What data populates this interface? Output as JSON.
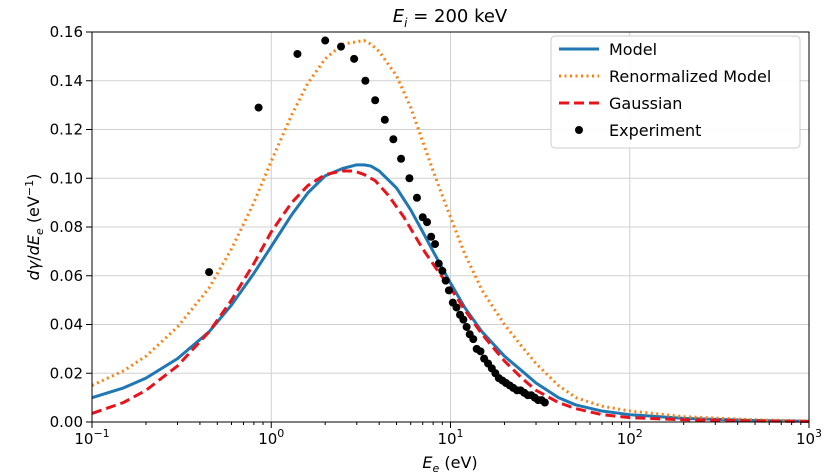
{
  "chart_data": {
    "type": "line",
    "title": "E_i = 200 keV",
    "title_parts": {
      "var": "E",
      "sub": "i",
      "rest": " = 200 keV"
    },
    "xlabel_parts": {
      "var": "E",
      "sub": "e",
      "rest": " (eV)"
    },
    "ylabel_parts": {
      "d1": "d",
      "gamma": "γ",
      "slash": "/",
      "d2": "d",
      "var": "E",
      "sub": "e",
      "unit": " (eV",
      "sup": "−1",
      "close": ")"
    },
    "x_scale": "log",
    "xlim": [
      0.1,
      1000
    ],
    "ylim": [
      0,
      0.16
    ],
    "grid": true,
    "legend_position": "top-right",
    "x_ticks": [
      {
        "base": "10",
        "exp": "−1",
        "value": 0.1
      },
      {
        "base": "10",
        "exp": "0",
        "value": 1
      },
      {
        "base": "10",
        "exp": "1",
        "value": 10
      },
      {
        "base": "10",
        "exp": "2",
        "value": 100
      },
      {
        "base": "10",
        "exp": "3",
        "value": 1000
      }
    ],
    "y_ticks": [
      "0.00",
      "0.02",
      "0.04",
      "0.06",
      "0.08",
      "0.10",
      "0.12",
      "0.14",
      "0.16"
    ],
    "series": [
      {
        "name": "Model",
        "color": "#1f77b4",
        "style": "solid",
        "x": [
          0.1,
          0.15,
          0.2,
          0.3,
          0.45,
          0.6,
          0.8,
          1.0,
          1.3,
          1.6,
          2.0,
          2.5,
          3.0,
          3.3,
          3.6,
          4.0,
          5.0,
          6.0,
          7.0,
          8.0,
          10,
          12,
          15,
          20,
          25,
          30,
          40,
          50,
          70,
          100,
          200,
          500,
          1000
        ],
        "y": [
          0.01,
          0.014,
          0.018,
          0.026,
          0.037,
          0.048,
          0.061,
          0.072,
          0.085,
          0.094,
          0.101,
          0.104,
          0.1055,
          0.1055,
          0.105,
          0.103,
          0.096,
          0.087,
          0.078,
          0.07,
          0.057,
          0.047,
          0.037,
          0.027,
          0.021,
          0.016,
          0.01,
          0.007,
          0.0045,
          0.003,
          0.0015,
          0.0006,
          0.0003
        ]
      },
      {
        "name": "Renormalized Model",
        "color": "#ff7f0e",
        "style": "dotted",
        "x": [
          0.1,
          0.15,
          0.2,
          0.3,
          0.45,
          0.6,
          0.8,
          1.0,
          1.3,
          1.6,
          2.0,
          2.5,
          3.0,
          3.3,
          3.6,
          4.0,
          5.0,
          6.0,
          7.0,
          8.0,
          10,
          12,
          15,
          20,
          25,
          30,
          40,
          50,
          70,
          100,
          200,
          500,
          1000
        ],
        "y": [
          0.015,
          0.021,
          0.027,
          0.039,
          0.055,
          0.071,
          0.09,
          0.107,
          0.126,
          0.139,
          0.149,
          0.155,
          0.156,
          0.1565,
          0.155,
          0.152,
          0.142,
          0.129,
          0.115,
          0.103,
          0.084,
          0.069,
          0.054,
          0.04,
          0.031,
          0.024,
          0.015,
          0.01,
          0.0065,
          0.0045,
          0.0022,
          0.0009,
          0.0004
        ]
      },
      {
        "name": "Gaussian",
        "color": "#e8141b",
        "style": "dashed",
        "x": [
          0.1,
          0.15,
          0.2,
          0.3,
          0.45,
          0.6,
          0.8,
          1.0,
          1.3,
          1.6,
          2.0,
          2.5,
          2.9,
          3.3,
          3.8,
          4.5,
          5.5,
          7.0,
          8.5,
          10,
          12,
          15,
          20,
          25,
          30,
          40,
          50,
          70,
          100,
          200,
          500,
          1000
        ],
        "y": [
          0.0035,
          0.008,
          0.013,
          0.023,
          0.037,
          0.05,
          0.065,
          0.078,
          0.09,
          0.097,
          0.1015,
          0.103,
          0.103,
          0.1015,
          0.099,
          0.093,
          0.084,
          0.071,
          0.062,
          0.055,
          0.046,
          0.036,
          0.025,
          0.018,
          0.013,
          0.008,
          0.0055,
          0.003,
          0.0018,
          0.0009,
          0.0004,
          0.0002
        ]
      },
      {
        "name": "Experiment",
        "color": "#000000",
        "style": "points",
        "x": [
          0.45,
          0.85,
          1.4,
          2.0,
          2.45,
          2.9,
          3.35,
          3.8,
          4.3,
          4.8,
          5.3,
          5.9,
          6.5,
          7.0,
          7.4,
          7.8,
          8.2,
          8.6,
          9.0,
          9.4,
          9.8,
          10.3,
          10.8,
          11.3,
          11.8,
          12.3,
          12.8,
          13.4,
          14.0,
          14.7,
          15.4,
          16.2,
          17.0,
          17.8,
          18.6,
          19.5,
          20.4,
          21.4,
          22.4,
          23.5,
          24.6,
          25.8,
          27.0,
          28.2,
          29.5,
          30.8,
          32.2,
          33.6
        ],
        "y": [
          0.0615,
          0.129,
          0.151,
          0.1565,
          0.154,
          0.149,
          0.14,
          0.132,
          0.124,
          0.116,
          0.108,
          0.1,
          0.092,
          0.084,
          0.082,
          0.076,
          0.073,
          0.065,
          0.062,
          0.058,
          0.054,
          0.049,
          0.047,
          0.044,
          0.042,
          0.039,
          0.036,
          0.034,
          0.03,
          0.029,
          0.026,
          0.024,
          0.022,
          0.02,
          0.018,
          0.017,
          0.016,
          0.015,
          0.014,
          0.013,
          0.013,
          0.012,
          0.011,
          0.011,
          0.01,
          0.009,
          0.009,
          0.008
        ]
      }
    ]
  }
}
